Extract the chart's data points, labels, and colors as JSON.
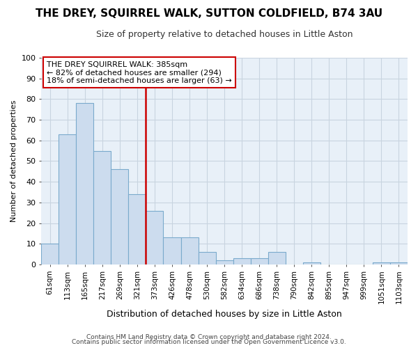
{
  "title": "THE DREY, SQUIRREL WALK, SUTTON COLDFIELD, B74 3AU",
  "subtitle": "Size of property relative to detached houses in Little Aston",
  "xlabel": "Distribution of detached houses by size in Little Aston",
  "ylabel": "Number of detached properties",
  "bar_color": "#ccdcee",
  "bar_edge_color": "#7aaacc",
  "grid_color": "#c8d4e0",
  "vline_color": "#cc0000",
  "vline_x_index": 6,
  "annotation_text": "THE DREY SQUIRREL WALK: 385sqm\n← 82% of detached houses are smaller (294)\n18% of semi-detached houses are larger (63) →",
  "annotation_box_color": "#ffffff",
  "annotation_box_edge": "#cc0000",
  "footer1": "Contains HM Land Registry data © Crown copyright and database right 2024.",
  "footer2": "Contains public sector information licensed under the Open Government Licence v3.0.",
  "categories": [
    "61sqm",
    "113sqm",
    "165sqm",
    "217sqm",
    "269sqm",
    "321sqm",
    "373sqm",
    "426sqm",
    "478sqm",
    "530sqm",
    "582sqm",
    "634sqm",
    "686sqm",
    "738sqm",
    "790sqm",
    "842sqm",
    "895sqm",
    "947sqm",
    "999sqm",
    "1051sqm",
    "1103sqm"
  ],
  "values": [
    10,
    63,
    78,
    55,
    46,
    34,
    26,
    13,
    13,
    6,
    2,
    3,
    3,
    6,
    0,
    1,
    0,
    0,
    0,
    1,
    1
  ],
  "ylim": [
    0,
    100
  ],
  "yticks": [
    0,
    10,
    20,
    30,
    40,
    50,
    60,
    70,
    80,
    90,
    100
  ],
  "background_color": "#e8f0f8",
  "title_fontsize": 11,
  "subtitle_fontsize": 9,
  "xlabel_fontsize": 9,
  "ylabel_fontsize": 8,
  "footer_fontsize": 6.5
}
